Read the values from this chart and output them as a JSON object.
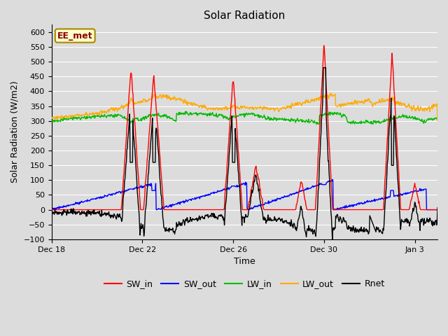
{
  "title": "Solar Radiation",
  "xlabel": "Time",
  "ylabel": "Solar Radiation (W/m2)",
  "ylim": [
    -100,
    625
  ],
  "yticks": [
    -100,
    -50,
    0,
    50,
    100,
    150,
    200,
    250,
    300,
    350,
    400,
    450,
    500,
    550,
    600
  ],
  "xtick_positions": [
    0,
    4,
    8,
    12,
    16
  ],
  "xtick_labels": [
    "Dec 18",
    "Dec 22",
    "Dec 26",
    "Dec 30",
    "Jan 3"
  ],
  "xlim": [
    0,
    17
  ],
  "legend_labels": [
    "SW_in",
    "SW_out",
    "LW_in",
    "LW_out",
    "Rnet"
  ],
  "legend_colors": [
    "#ff0000",
    "#0000ff",
    "#00bb00",
    "#ffaa00",
    "#000000"
  ],
  "annotation_text": "EE_met",
  "annotation_bg": "#ffffcc",
  "annotation_border": "#aa8800",
  "plot_bg": "#dcdcdc",
  "fig_bg": "#dcdcdc",
  "grid_color": "#ffffff",
  "SW_in_color": "#ff0000",
  "SW_out_color": "#0000ff",
  "LW_in_color": "#00bb00",
  "LW_out_color": "#ffaa00",
  "Rnet_color": "#000000",
  "linewidth": 1.0
}
